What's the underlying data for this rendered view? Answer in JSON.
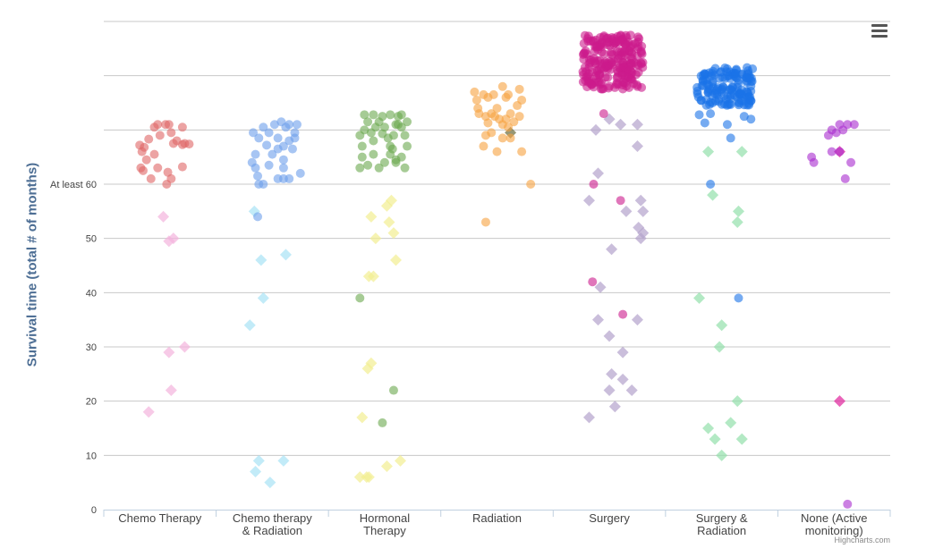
{
  "ui": {
    "credits": "Highcharts.com",
    "menu_icon": "hamburger-menu-icon"
  },
  "chart_data": {
    "type": "scatter",
    "title": "",
    "xlabel": "",
    "ylabel": "Survival time (total # of months)",
    "ylim": [
      0,
      90
    ],
    "yticks": [
      {
        "value": 0,
        "label": "0"
      },
      {
        "value": 10,
        "label": "10"
      },
      {
        "value": 20,
        "label": "20"
      },
      {
        "value": 30,
        "label": "30"
      },
      {
        "value": 40,
        "label": "40"
      },
      {
        "value": 50,
        "label": "50"
      },
      {
        "value": 60,
        "label": "At least 60"
      },
      {
        "value": 70,
        "label": ""
      },
      {
        "value": 80,
        "label": ""
      },
      {
        "value": 90,
        "label": ""
      }
    ],
    "grid": true,
    "legend": "none",
    "categories": [
      "Chemo Therapy",
      "Chemo therapy & Radiation",
      "Hormonal Therapy",
      "Radiation",
      "Surgery",
      "Surgery & Radiation",
      "None (Active monitoring)"
    ],
    "category_label_lines": [
      [
        "Chemo Therapy"
      ],
      [
        "Chemo therapy",
        "& Radiation"
      ],
      [
        "Hormonal",
        "Therapy"
      ],
      [
        "Radiation"
      ],
      [
        "Surgery"
      ],
      [
        "Surgery &",
        "Radiation"
      ],
      [
        "None (Active",
        "monitoring)"
      ]
    ],
    "series": [
      {
        "category": "Chemo Therapy",
        "color": "#e06666",
        "dead_color": "#f4b3dd",
        "alive": [
          [
            -0.18,
            67.2
          ],
          [
            -0.14,
            66.8
          ],
          [
            -0.15,
            62.5
          ],
          [
            -0.12,
            64.5
          ],
          [
            -0.17,
            63
          ],
          [
            -0.08,
            61
          ],
          [
            -0.05,
            65.5
          ],
          [
            -0.02,
            63
          ],
          [
            0.07,
            62.2
          ],
          [
            0.06,
            60
          ],
          [
            0.1,
            61
          ],
          [
            0.2,
            63.2
          ],
          [
            0.22,
            67.5
          ],
          [
            0.2,
            70.5
          ],
          [
            0.15,
            68
          ],
          [
            0.1,
            69.5
          ],
          [
            0.05,
            71
          ],
          [
            0.0,
            69
          ],
          [
            -0.05,
            70.5
          ],
          [
            -0.1,
            68.3
          ],
          [
            -0.02,
            71
          ],
          [
            0.08,
            71
          ],
          [
            0.2,
            67.3
          ],
          [
            0.26,
            67.4
          ],
          [
            -0.16,
            66
          ],
          [
            0.12,
            67.5
          ]
        ],
        "dead": [
          [
            0.03,
            54
          ],
          [
            0.08,
            49.5
          ],
          [
            0.12,
            50
          ],
          [
            0.08,
            29
          ],
          [
            0.22,
            30
          ],
          [
            0.1,
            22
          ],
          [
            -0.1,
            18
          ]
        ]
      },
      {
        "category": "Chemo therapy & Radiation",
        "color": "#6d9eeb",
        "dead_color": "#a8e3f5",
        "alive": [
          [
            -0.18,
            64
          ],
          [
            -0.15,
            65.5
          ],
          [
            -0.17,
            69.5
          ],
          [
            -0.12,
            68.5
          ],
          [
            -0.08,
            70.5
          ],
          [
            -0.05,
            67.2
          ],
          [
            -0.03,
            69.5
          ],
          [
            0.05,
            68.5
          ],
          [
            0.1,
            67
          ],
          [
            0.12,
            70.5
          ],
          [
            0.15,
            68
          ],
          [
            0.02,
            71
          ],
          [
            0.08,
            71.5
          ],
          [
            0.15,
            71
          ],
          [
            0.2,
            68.5
          ],
          [
            0.2,
            69.5
          ],
          [
            0.22,
            71
          ],
          [
            0.25,
            62
          ],
          [
            0.15,
            61
          ],
          [
            0.1,
            61
          ],
          [
            0.05,
            61
          ],
          [
            0.1,
            64.5
          ],
          [
            0.1,
            63
          ],
          [
            -0.08,
            60
          ],
          [
            -0.12,
            60
          ],
          [
            -0.13,
            61.5
          ],
          [
            -0.15,
            63
          ],
          [
            -0.03,
            63.5
          ],
          [
            0.0,
            65.5
          ],
          [
            0.05,
            66.5
          ],
          [
            0.18,
            66.5
          ],
          [
            -0.13,
            54
          ]
        ],
        "dead": [
          [
            -0.16,
            55
          ],
          [
            -0.1,
            46
          ],
          [
            -0.08,
            39
          ],
          [
            0.12,
            47
          ],
          [
            -0.2,
            34
          ],
          [
            -0.15,
            7
          ],
          [
            -0.12,
            9
          ],
          [
            0.1,
            9
          ],
          [
            -0.02,
            5
          ]
        ]
      },
      {
        "category": "Hormonal Therapy",
        "color": "#6aa84f",
        "dead_color": "#f2ee91",
        "alive": [
          [
            -0.22,
            69
          ],
          [
            -0.2,
            67
          ],
          [
            -0.18,
            70
          ],
          [
            -0.15,
            71.5
          ],
          [
            -0.12,
            69.5
          ],
          [
            -0.1,
            68
          ],
          [
            -0.08,
            70.5
          ],
          [
            -0.05,
            71.5
          ],
          [
            -0.02,
            69.3
          ],
          [
            0.0,
            70.5
          ],
          [
            0.03,
            68.5
          ],
          [
            0.05,
            67
          ],
          [
            0.07,
            66.5
          ],
          [
            0.08,
            69
          ],
          [
            0.1,
            71
          ],
          [
            0.12,
            72.5
          ],
          [
            0.15,
            70.5
          ],
          [
            0.18,
            69
          ],
          [
            0.2,
            71.5
          ],
          [
            0.2,
            67
          ],
          [
            0.15,
            65
          ],
          [
            0.1,
            64
          ],
          [
            0.05,
            65.5
          ],
          [
            -0.05,
            63
          ],
          [
            -0.15,
            63.5
          ],
          [
            -0.22,
            63
          ],
          [
            -0.2,
            65
          ],
          [
            -0.1,
            65.5
          ],
          [
            0.0,
            64
          ],
          [
            0.1,
            64.5
          ],
          [
            0.18,
            63
          ],
          [
            0.12,
            71
          ],
          [
            -0.02,
            72.5
          ],
          [
            -0.18,
            72.8
          ],
          [
            -0.1,
            72.8
          ],
          [
            0.05,
            72.8
          ],
          [
            0.15,
            72.8
          ],
          [
            -0.22,
            39
          ],
          [
            0.08,
            22
          ],
          [
            -0.02,
            16
          ]
        ],
        "dead": [
          [
            -0.12,
            54
          ],
          [
            -0.08,
            50
          ],
          [
            -0.1,
            43
          ],
          [
            -0.14,
            43
          ],
          [
            0.02,
            56
          ],
          [
            0.06,
            57
          ],
          [
            0.04,
            53
          ],
          [
            0.08,
            51
          ],
          [
            0.1,
            46
          ],
          [
            -0.12,
            27
          ],
          [
            -0.15,
            26
          ],
          [
            -0.2,
            17
          ],
          [
            -0.22,
            6
          ],
          [
            -0.16,
            6
          ],
          [
            -0.14,
            6
          ],
          [
            0.02,
            8
          ],
          [
            0.14,
            9
          ]
        ]
      },
      {
        "category": "Radiation",
        "color": "#f6a23f",
        "dead_color": "#6b6b3a",
        "alive": [
          [
            -0.2,
            77
          ],
          [
            -0.18,
            75.5
          ],
          [
            -0.17,
            74
          ],
          [
            -0.16,
            73
          ],
          [
            -0.12,
            76.5
          ],
          [
            -0.1,
            72.5
          ],
          [
            -0.08,
            71.3
          ],
          [
            -0.05,
            73
          ],
          [
            -0.03,
            76.5
          ],
          [
            0.0,
            74
          ],
          [
            0.02,
            72
          ],
          [
            0.05,
            71
          ],
          [
            0.08,
            72
          ],
          [
            0.1,
            76.5
          ],
          [
            0.12,
            73
          ],
          [
            0.15,
            71.5
          ],
          [
            0.18,
            74.5
          ],
          [
            0.2,
            72.5
          ],
          [
            0.22,
            75.5
          ],
          [
            0.2,
            77.5
          ],
          [
            0.05,
            78
          ],
          [
            -0.1,
            69
          ],
          [
            -0.12,
            67
          ],
          [
            -0.05,
            69.5
          ],
          [
            0.0,
            66
          ],
          [
            0.05,
            68.5
          ],
          [
            0.12,
            68.5
          ],
          [
            0.22,
            66
          ],
          [
            0.3,
            60
          ],
          [
            -0.1,
            53
          ],
          [
            -0.08,
            76
          ],
          [
            0.08,
            76
          ],
          [
            -0.02,
            72.5
          ],
          [
            0.1,
            70.5
          ]
        ],
        "dead": [
          [
            0.12,
            69.5
          ]
        ]
      },
      {
        "category": "Surgery",
        "color": "#cc1a8c",
        "dead_color": "#b4a3cc",
        "alive_dense": {
          "x_range": [
            -0.24,
            0.3
          ],
          "y_range": [
            77.5,
            87.5
          ],
          "count": 220
        },
        "alive": [
          [
            -0.14,
            60
          ],
          [
            -0.15,
            42
          ],
          [
            0.1,
            57
          ],
          [
            0.12,
            36
          ],
          [
            -0.05,
            73
          ],
          [
            -0.2,
            84
          ],
          [
            -0.18,
            81.5
          ],
          [
            -0.16,
            78.5
          ],
          [
            0.25,
            78
          ]
        ],
        "dead": [
          [
            -0.12,
            70
          ],
          [
            -0.1,
            62
          ],
          [
            -0.18,
            57
          ],
          [
            0.0,
            72
          ],
          [
            0.1,
            71
          ],
          [
            0.25,
            71
          ],
          [
            0.25,
            67
          ],
          [
            -0.08,
            41
          ],
          [
            -0.1,
            35
          ],
          [
            0.0,
            32
          ],
          [
            0.12,
            29
          ],
          [
            0.02,
            25
          ],
          [
            0.12,
            24
          ],
          [
            0.2,
            22
          ],
          [
            0.0,
            22
          ],
          [
            0.05,
            19
          ],
          [
            -0.18,
            17
          ],
          [
            0.02,
            48
          ],
          [
            0.15,
            55
          ],
          [
            0.28,
            57
          ],
          [
            0.3,
            55
          ],
          [
            0.26,
            52
          ],
          [
            0.3,
            51
          ],
          [
            0.28,
            50
          ],
          [
            0.25,
            35
          ]
        ]
      },
      {
        "category": "Surgery & Radiation",
        "color": "#1a73e8",
        "dead_color": "#93e0ab",
        "alive_dense": {
          "x_range": [
            -0.22,
            0.28
          ],
          "y_range": [
            74.5,
            81.5
          ],
          "count": 140
        },
        "alive": [
          [
            -0.2,
            72.8
          ],
          [
            -0.15,
            71.3
          ],
          [
            -0.1,
            73
          ],
          [
            0.2,
            72.5
          ],
          [
            0.26,
            72
          ],
          [
            0.08,
            68.5
          ],
          [
            -0.1,
            60
          ],
          [
            0.15,
            39
          ],
          [
            0.05,
            71
          ]
        ],
        "dead": [
          [
            -0.12,
            66
          ],
          [
            0.18,
            66
          ],
          [
            -0.08,
            58
          ],
          [
            0.15,
            55
          ],
          [
            0.14,
            53
          ],
          [
            -0.2,
            39
          ],
          [
            0.0,
            34
          ],
          [
            -0.02,
            30
          ],
          [
            0.14,
            20
          ],
          [
            0.08,
            16
          ],
          [
            -0.12,
            15
          ],
          [
            -0.06,
            13
          ],
          [
            0.18,
            13
          ],
          [
            0.0,
            10
          ]
        ]
      },
      {
        "category": "None (Active monitoring)",
        "color": "#a82bcf",
        "dead_color": "#e0229b",
        "alive": [
          [
            -0.2,
            65
          ],
          [
            -0.18,
            64
          ],
          [
            -0.05,
            69
          ],
          [
            -0.02,
            70
          ],
          [
            0.02,
            69.5
          ],
          [
            0.08,
            70
          ],
          [
            0.12,
            71
          ],
          [
            0.18,
            71
          ],
          [
            0.15,
            64
          ],
          [
            0.1,
            61
          ],
          [
            -0.02,
            66
          ],
          [
            0.05,
            66
          ],
          [
            0.05,
            71
          ],
          [
            0.12,
            1
          ]
        ],
        "dead": [
          [
            0.05,
            66
          ],
          [
            0.05,
            20
          ]
        ]
      }
    ]
  }
}
